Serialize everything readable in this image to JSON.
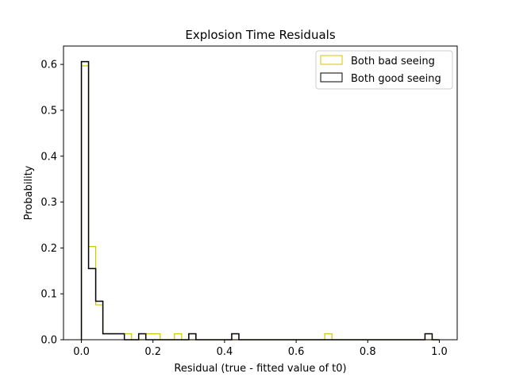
{
  "chart_data": {
    "type": "histogram",
    "title": "Explosion Time Residuals",
    "xlabel": "Residual (true - fitted value of t0)",
    "ylabel": "Probability",
    "xlim": [
      -0.05,
      1.05
    ],
    "ylim": [
      0,
      0.64
    ],
    "xticks": [
      0.0,
      0.2,
      0.4,
      0.6,
      0.8,
      1.0
    ],
    "xtick_labels": [
      "0.0",
      "0.2",
      "0.4",
      "0.6",
      "0.8",
      "1.0"
    ],
    "yticks": [
      0.0,
      0.1,
      0.2,
      0.3,
      0.4,
      0.5,
      0.6
    ],
    "ytick_labels": [
      "0.0",
      "0.1",
      "0.2",
      "0.3",
      "0.4",
      "0.5",
      "0.6"
    ],
    "grid": false,
    "legend_position": "top-right",
    "bin_edges": [
      0.0,
      0.02,
      0.04,
      0.06,
      0.08,
      0.1,
      0.12,
      0.14,
      0.16,
      0.18,
      0.2,
      0.22,
      0.24,
      0.26,
      0.28,
      0.3,
      0.32,
      0.34,
      0.36,
      0.38,
      0.4,
      0.42,
      0.44,
      0.46,
      0.48,
      0.5,
      0.52,
      0.54,
      0.56,
      0.58,
      0.6,
      0.62,
      0.64,
      0.66,
      0.68,
      0.7,
      0.72,
      0.74,
      0.76,
      0.78,
      0.8,
      0.82,
      0.84,
      0.86,
      0.88,
      0.9,
      0.92,
      0.94,
      0.96,
      0.98,
      1.0
    ],
    "series": [
      {
        "name": "Both bad seeing",
        "color": "#d4c400",
        "values": [
          0.597,
          0.203,
          0.076,
          0.013,
          0.013,
          0.013,
          0.013,
          0.0,
          0.0,
          0.013,
          0.013,
          0.0,
          0.0,
          0.013,
          0.0,
          0.0,
          0.0,
          0.0,
          0.0,
          0.0,
          0.0,
          0.0,
          0.0,
          0.0,
          0.0,
          0.0,
          0.0,
          0.0,
          0.0,
          0.0,
          0.0,
          0.0,
          0.0,
          0.0,
          0.013,
          0.0,
          0.0,
          0.0,
          0.0,
          0.0,
          0.0,
          0.0,
          0.0,
          0.0,
          0.0,
          0.0,
          0.0,
          0.0,
          0.0,
          0.0
        ]
      },
      {
        "name": "Both good seeing",
        "color": "#000000",
        "values": [
          0.606,
          0.155,
          0.084,
          0.013,
          0.013,
          0.013,
          0.0,
          0.0,
          0.013,
          0.0,
          0.0,
          0.0,
          0.0,
          0.0,
          0.0,
          0.013,
          0.0,
          0.0,
          0.0,
          0.0,
          0.0,
          0.013,
          0.0,
          0.0,
          0.0,
          0.0,
          0.0,
          0.0,
          0.0,
          0.0,
          0.0,
          0.0,
          0.0,
          0.0,
          0.0,
          0.0,
          0.0,
          0.0,
          0.0,
          0.0,
          0.0,
          0.0,
          0.0,
          0.0,
          0.0,
          0.0,
          0.0,
          0.0,
          0.013,
          0.0
        ]
      }
    ]
  }
}
